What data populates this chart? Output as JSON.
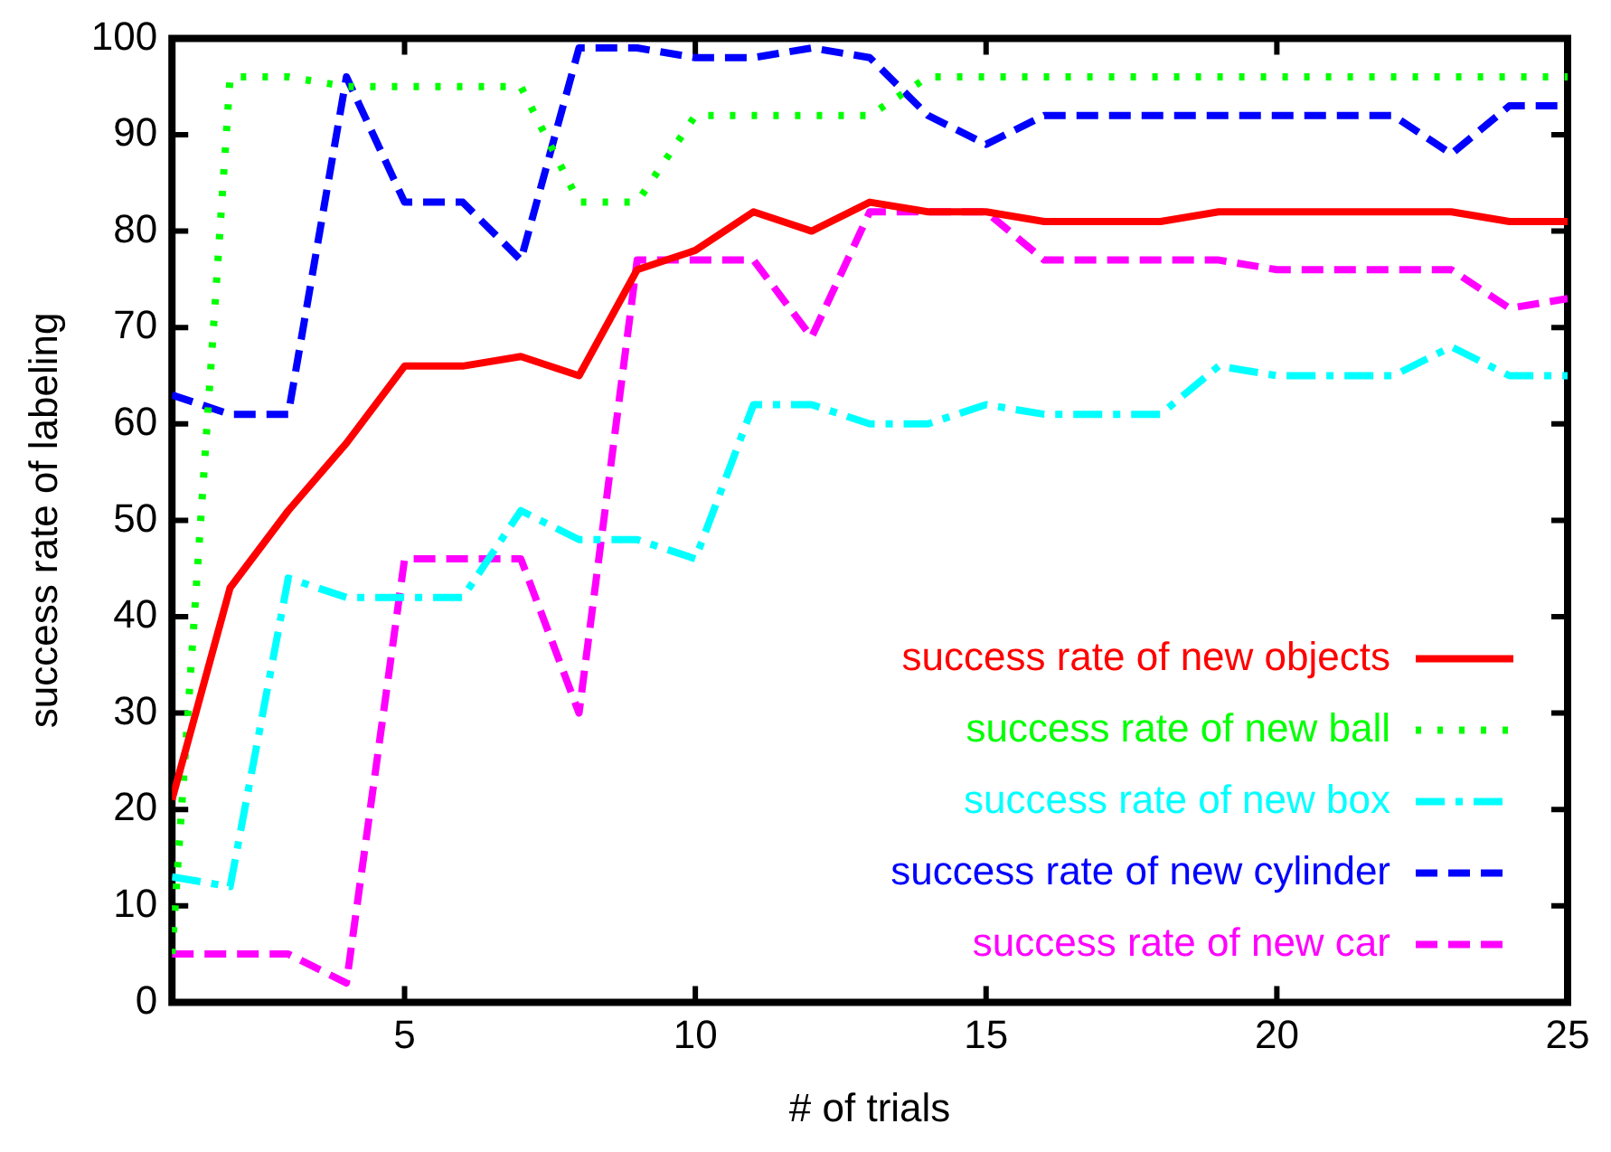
{
  "chart_data": {
    "type": "line",
    "xlabel": "# of trials",
    "ylabel": "success rate of labeling",
    "x": [
      1,
      2,
      3,
      4,
      5,
      6,
      7,
      8,
      9,
      10,
      11,
      12,
      13,
      14,
      15,
      16,
      17,
      18,
      19,
      20,
      21,
      22,
      23,
      24,
      25
    ],
    "xlim": [
      1,
      25
    ],
    "xticks": [
      5,
      10,
      15,
      20,
      25
    ],
    "ylim": [
      0,
      100
    ],
    "yticks": [
      0,
      10,
      20,
      30,
      40,
      50,
      60,
      70,
      80,
      90,
      100
    ],
    "grid": false,
    "legend": "bottom right",
    "marker": "none",
    "series": [
      {
        "name": "success rate of new objects",
        "color": "#ff0000",
        "line_style": "solid",
        "values": [
          21,
          43,
          51,
          58,
          66,
          66,
          67,
          65,
          76,
          78,
          82,
          80,
          83,
          82,
          82,
          81,
          81,
          81,
          82,
          82,
          82,
          82,
          82,
          81,
          81
        ]
      },
      {
        "name": "success rate of new ball",
        "color": "#00ff00",
        "line_style": "dotted",
        "values": [
          5,
          96,
          96,
          95,
          95,
          95,
          95,
          83,
          83,
          92,
          92,
          92,
          92,
          96,
          96,
          96,
          96,
          96,
          96,
          96,
          96,
          96,
          96,
          96,
          96
        ]
      },
      {
        "name": "success rate of new box",
        "color": "#00ffff",
        "line_style": "dashdot",
        "values": [
          13,
          12,
          44,
          42,
          42,
          42,
          51,
          48,
          48,
          46,
          62,
          62,
          60,
          60,
          62,
          61,
          61,
          61,
          66,
          65,
          65,
          65,
          68,
          65,
          65
        ]
      },
      {
        "name": "success rate of new cylinder",
        "color": "#0000ff",
        "line_style": "dashed",
        "values": [
          63,
          61,
          61,
          96,
          83,
          83,
          77,
          99,
          99,
          98,
          98,
          99,
          98,
          92,
          89,
          92,
          92,
          92,
          92,
          92,
          92,
          92,
          88,
          93,
          93
        ]
      },
      {
        "name": "success rate of new car",
        "color": "#ff00ff",
        "line_style": "dashed",
        "values": [
          5,
          5,
          5,
          2,
          46,
          46,
          46,
          30,
          77,
          77,
          77,
          69,
          82,
          82,
          82,
          77,
          77,
          77,
          77,
          76,
          76,
          76,
          76,
          72,
          73
        ]
      }
    ]
  }
}
